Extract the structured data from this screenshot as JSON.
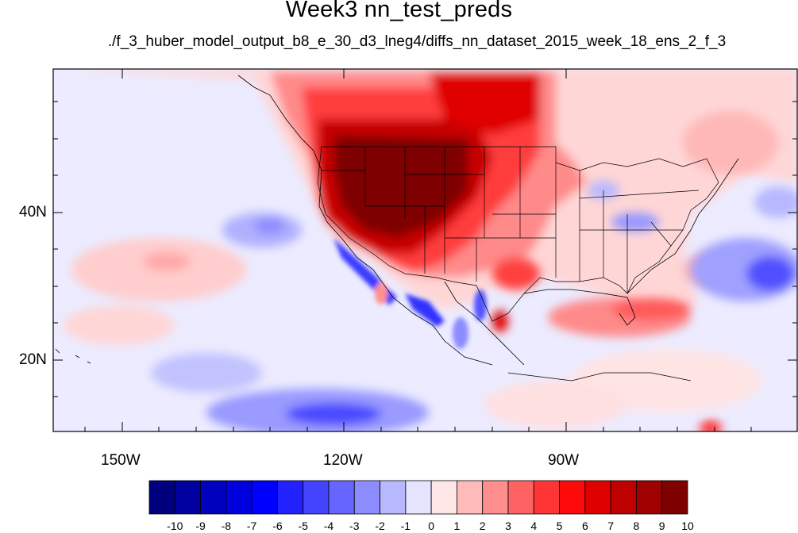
{
  "title": "Week3 nn_test_preds",
  "subtitle": "./f_3_huber_model_output_b8_e_30_d3_lneg4/diffs_nn_dataset_2015_week_18_ens_2_f_3",
  "axes": {
    "lon_labels": [
      "150W",
      "120W",
      "90W"
    ],
    "lat_labels": [
      "40N",
      "20N"
    ]
  },
  "colorbar": {
    "labels": [
      "-10",
      "-9",
      "-8",
      "-7",
      "-6",
      "-5",
      "-4",
      "-3",
      "-2",
      "-1",
      "0",
      "1",
      "2",
      "3",
      "4",
      "5",
      "6",
      "7",
      "8",
      "9",
      "10"
    ],
    "colors": [
      "#00007f",
      "#00009f",
      "#0000bf",
      "#0000df",
      "#0000ff",
      "#2222ff",
      "#4444ff",
      "#6666ff",
      "#8c8cff",
      "#b8b8ff",
      "#e4e4ff",
      "#ffe6e6",
      "#ffbaba",
      "#ff8e8e",
      "#ff6262",
      "#ff3535",
      "#ff0a0a",
      "#df0000",
      "#bf0000",
      "#9f0000",
      "#7f0000"
    ]
  }
}
